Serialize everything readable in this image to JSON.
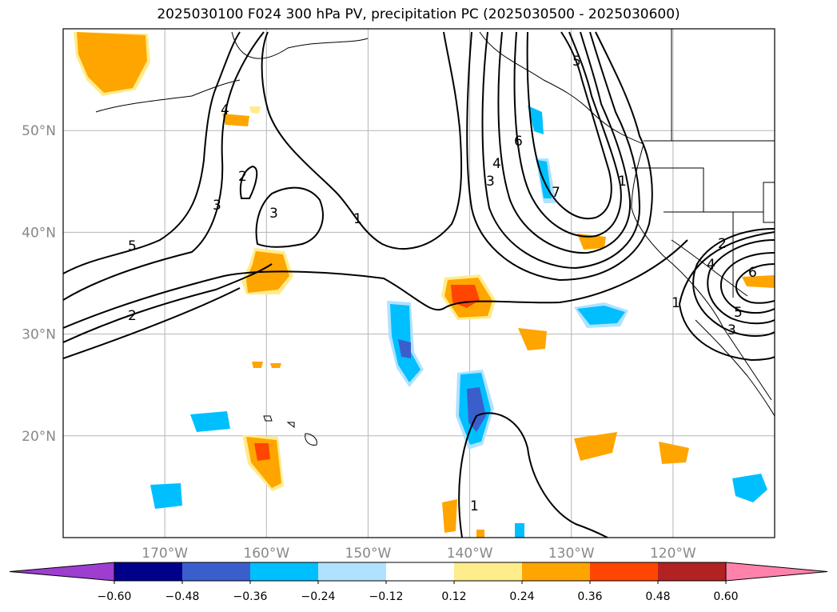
{
  "title": "2025030100 F024 300 hPa PV, precipitation PC (2025030500 - 2025030600)",
  "map": {
    "lat_labels": [
      "50°N",
      "40°N",
      "30°N",
      "20°N"
    ],
    "lon_labels": [
      "170°W",
      "160°W",
      "150°W",
      "140°W",
      "130°W",
      "120°W"
    ],
    "lat_values": [
      50,
      40,
      30,
      20
    ],
    "lon_values": [
      -170,
      -160,
      -150,
      -140,
      -130,
      -120
    ],
    "extent": {
      "lon_min": -180,
      "lon_max": -110,
      "lat_min": 10,
      "lat_max": 60
    },
    "grid": true,
    "contour_labels": [
      {
        "text": "5"
      },
      {
        "text": "2"
      },
      {
        "text": "3"
      },
      {
        "text": "2"
      },
      {
        "text": "3"
      },
      {
        "text": "4"
      },
      {
        "text": "1"
      },
      {
        "text": "6"
      },
      {
        "text": "4"
      },
      {
        "text": "3"
      },
      {
        "text": "7"
      },
      {
        "text": "1"
      },
      {
        "text": "5"
      },
      {
        "text": "1"
      },
      {
        "text": "2"
      },
      {
        "text": "6"
      },
      {
        "text": "4"
      },
      {
        "text": "1"
      },
      {
        "text": "5"
      },
      {
        "text": "3"
      }
    ]
  },
  "colorbar": {
    "colors": [
      "#9d3ed0",
      "#00008b",
      "#3a5fcd",
      "#00bfff",
      "#b0e2ff",
      "#ffffff",
      "#ffec8b",
      "#ffa500",
      "#ff4500",
      "#b22222",
      "#ff82ab"
    ],
    "ticks": [
      "−0.60",
      "−0.48",
      "−0.36",
      "−0.24",
      "−0.12",
      "0.12",
      "0.24",
      "0.36",
      "0.48",
      "0.60"
    ]
  }
}
